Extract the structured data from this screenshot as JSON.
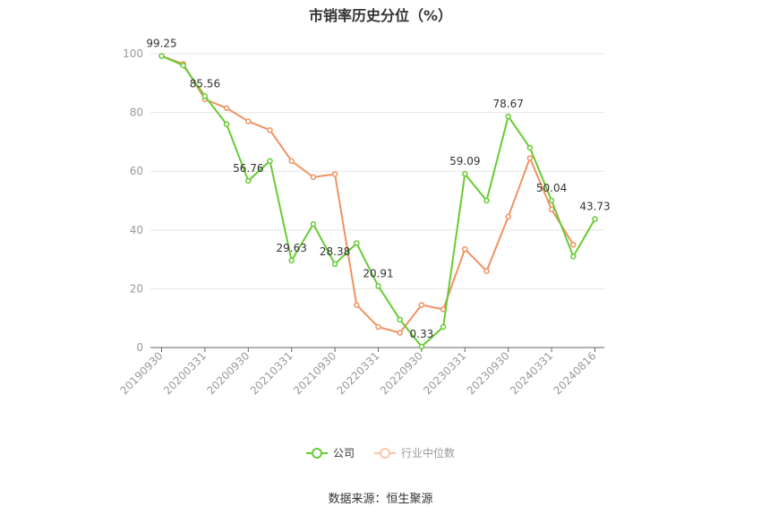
{
  "chart_data": {
    "type": "line",
    "title": "市销率历史分位（%）",
    "x": [
      "20190930",
      "20191231",
      "20200331",
      "20200630",
      "20200930",
      "20201231",
      "20210331",
      "20210630",
      "20210930",
      "20211231",
      "20220331",
      "20220630",
      "20220930",
      "20221231",
      "20230331",
      "20230630",
      "20230930",
      "20231231",
      "20240331",
      "20240630",
      "20240816"
    ],
    "x_tick_labels": [
      "20190930",
      "20200331",
      "20200930",
      "20210331",
      "20210930",
      "20220331",
      "20220930",
      "20230331",
      "20230930",
      "20240331",
      "20240816"
    ],
    "y_ticks": [
      0,
      20,
      40,
      60,
      80,
      100
    ],
    "ylim": [
      0,
      100
    ],
    "grid": true,
    "legend_position": "bottom",
    "series": [
      {
        "name": "公司",
        "color": "#66cc33",
        "values": [
          99.25,
          96,
          85.56,
          76,
          56.76,
          63.5,
          29.63,
          42,
          28.38,
          35.5,
          20.91,
          9.5,
          0.33,
          7,
          59.09,
          50,
          78.67,
          68,
          50.04,
          31,
          43.73
        ],
        "data_labels": {
          "0": "99.25",
          "2": "85.56",
          "4": "56.76",
          "6": "29.63",
          "8": "28.38",
          "10": "20.91",
          "12": "0.33",
          "14": "59.09",
          "16": "78.67",
          "18": "50.04",
          "20": "43.73"
        }
      },
      {
        "name": "行业中位数",
        "color": "#f09262",
        "values": [
          99.25,
          96.5,
          84.5,
          81.5,
          77,
          74,
          63.5,
          58,
          59,
          14.5,
          7,
          5,
          14.5,
          13,
          33.5,
          26,
          44.5,
          64.5,
          47,
          35,
          null
        ]
      }
    ]
  },
  "legend": {
    "company": "公司",
    "industry": "行业中位数"
  },
  "source": "数据来源：恒生聚源"
}
